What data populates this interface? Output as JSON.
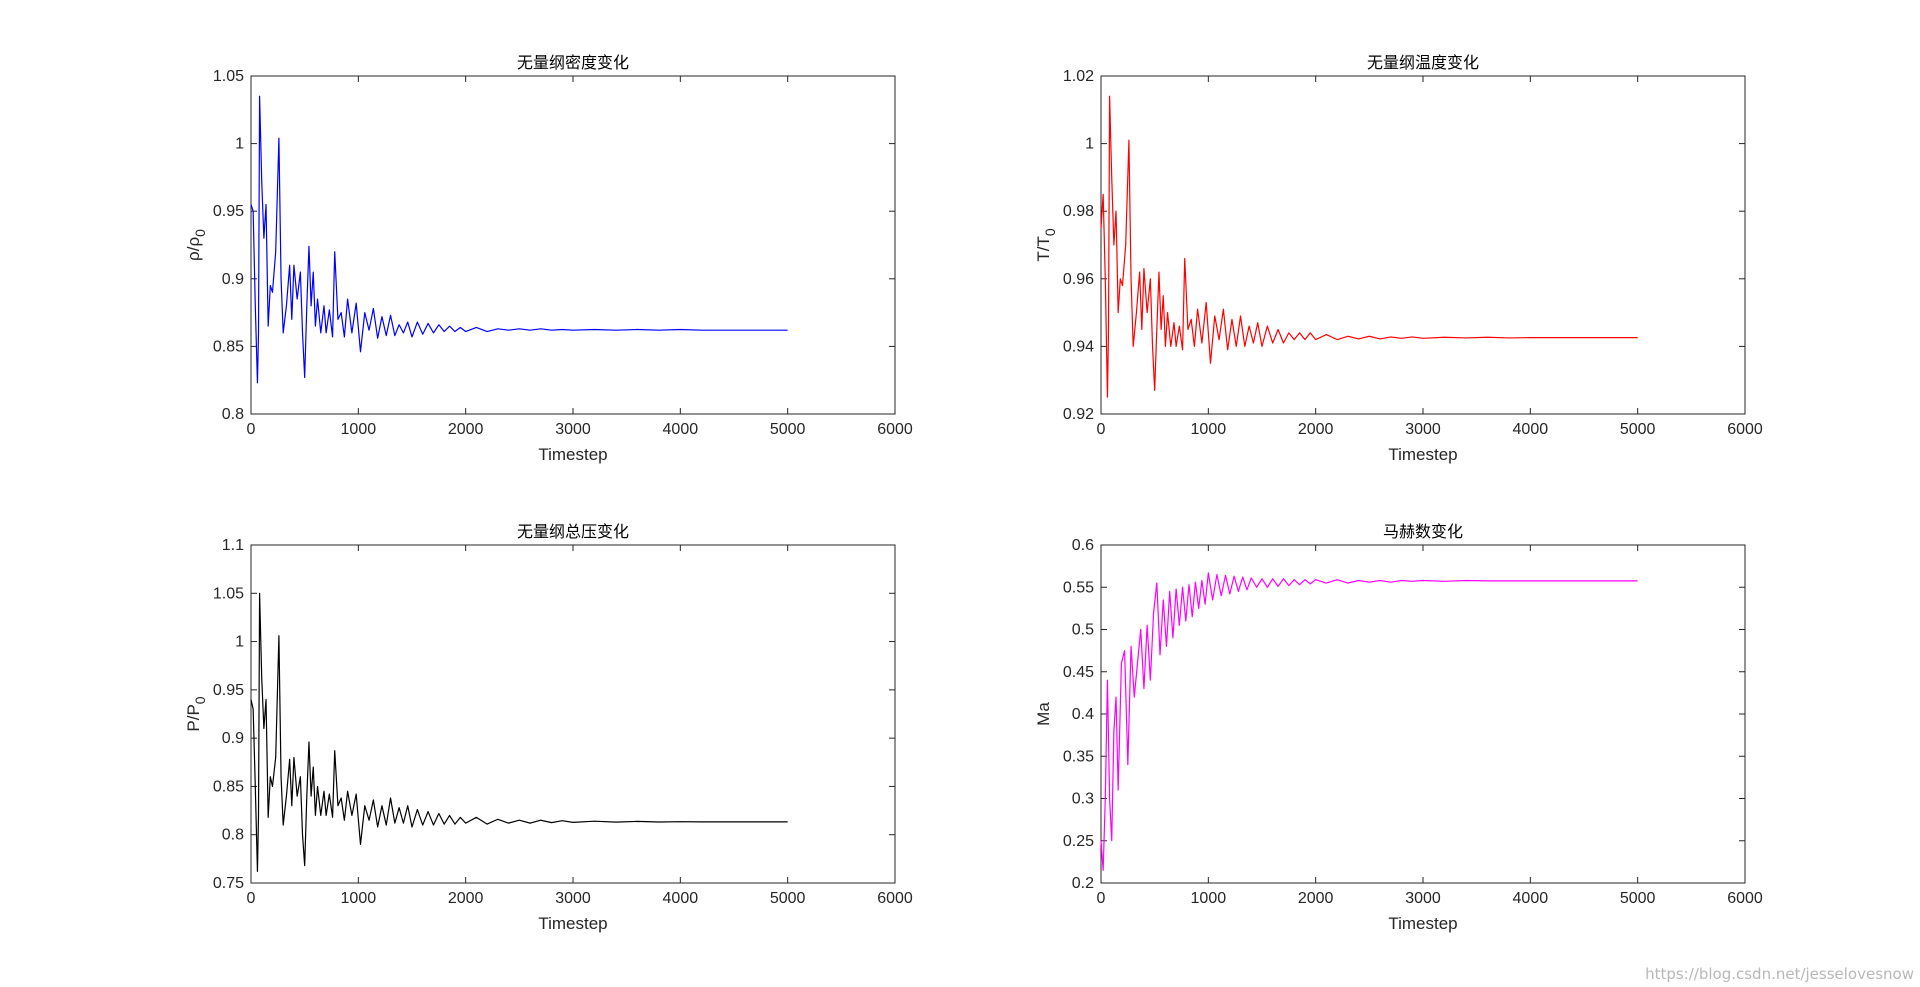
{
  "watermark": "https://blog.csdn.net/jesselovesnow",
  "chart_data": [
    {
      "type": "line",
      "title": "无量纲密度变化",
      "xlabel": "Timestep",
      "ylabel": {
        "base": "ρ/ρ",
        "sub": "0"
      },
      "xlim": [
        0,
        6000
      ],
      "ylim": [
        0.8,
        1.05
      ],
      "xticks": [
        0,
        1000,
        2000,
        3000,
        4000,
        5000,
        6000
      ],
      "yticks": [
        0.8,
        0.85,
        0.9,
        0.95,
        1,
        1.05
      ],
      "xtick_labels": [
        "0",
        "1000",
        "2000",
        "3000",
        "4000",
        "5000",
        "6000"
      ],
      "ytick_labels": [
        "0.8",
        "0.85",
        "0.9",
        "0.95",
        "1",
        "1.05"
      ],
      "grid": false,
      "color": "#0000ff",
      "series": [
        {
          "x": [
            0,
            20,
            40,
            60,
            70,
            80,
            100,
            120,
            140,
            160,
            180,
            200,
            230,
            260,
            280,
            300,
            330,
            360,
            380,
            400,
            430,
            460,
            480,
            500,
            520,
            540,
            560,
            580,
            600,
            620,
            650,
            680,
            700,
            730,
            760,
            780,
            810,
            840,
            870,
            900,
            940,
            980,
            1020,
            1060,
            1100,
            1140,
            1180,
            1220,
            1260,
            1300,
            1340,
            1380,
            1420,
            1460,
            1500,
            1550,
            1600,
            1650,
            1700,
            1750,
            1800,
            1850,
            1900,
            1950,
            2000,
            2100,
            2200,
            2300,
            2400,
            2500,
            2600,
            2700,
            2800,
            2900,
            3000,
            3200,
            3400,
            3600,
            3800,
            4000,
            4200,
            4400,
            4600,
            4800,
            5000
          ],
          "y": [
            0.955,
            0.95,
            0.88,
            0.823,
            0.86,
            1.035,
            0.972,
            0.93,
            0.955,
            0.865,
            0.895,
            0.89,
            0.92,
            1.004,
            0.9,
            0.86,
            0.88,
            0.91,
            0.87,
            0.91,
            0.885,
            0.905,
            0.86,
            0.827,
            0.88,
            0.924,
            0.88,
            0.905,
            0.865,
            0.885,
            0.86,
            0.88,
            0.86,
            0.877,
            0.857,
            0.92,
            0.87,
            0.875,
            0.857,
            0.885,
            0.86,
            0.882,
            0.846,
            0.875,
            0.862,
            0.878,
            0.856,
            0.872,
            0.858,
            0.873,
            0.858,
            0.866,
            0.86,
            0.868,
            0.857,
            0.868,
            0.859,
            0.867,
            0.86,
            0.866,
            0.861,
            0.865,
            0.861,
            0.864,
            0.861,
            0.864,
            0.861,
            0.863,
            0.862,
            0.863,
            0.862,
            0.863,
            0.862,
            0.8625,
            0.862,
            0.8625,
            0.862,
            0.8625,
            0.862,
            0.8625,
            0.862,
            0.862,
            0.862,
            0.862,
            0.862
          ]
        }
      ]
    },
    {
      "type": "line",
      "title": "无量纲温度变化",
      "xlabel": "Timestep",
      "ylabel": {
        "base": "T/T",
        "sub": "0"
      },
      "xlim": [
        0,
        6000
      ],
      "ylim": [
        0.92,
        1.02
      ],
      "xticks": [
        0,
        1000,
        2000,
        3000,
        4000,
        5000,
        6000
      ],
      "yticks": [
        0.92,
        0.94,
        0.96,
        0.98,
        1,
        1.02
      ],
      "xtick_labels": [
        "0",
        "1000",
        "2000",
        "3000",
        "4000",
        "5000",
        "6000"
      ],
      "ytick_labels": [
        "0.92",
        "0.94",
        "0.96",
        "0.98",
        "1",
        "1.02"
      ],
      "grid": false,
      "color": "#ff0000",
      "series": [
        {
          "x": [
            0,
            20,
            40,
            60,
            70,
            80,
            100,
            120,
            140,
            160,
            180,
            200,
            230,
            260,
            280,
            300,
            330,
            360,
            380,
            400,
            430,
            460,
            480,
            500,
            520,
            540,
            560,
            580,
            600,
            620,
            650,
            680,
            700,
            730,
            760,
            780,
            810,
            840,
            870,
            900,
            940,
            980,
            1020,
            1060,
            1100,
            1140,
            1180,
            1220,
            1260,
            1300,
            1340,
            1380,
            1420,
            1460,
            1500,
            1550,
            1600,
            1650,
            1700,
            1750,
            1800,
            1850,
            1900,
            1950,
            2000,
            2100,
            2200,
            2300,
            2400,
            2500,
            2600,
            2700,
            2800,
            2900,
            3000,
            3200,
            3400,
            3600,
            3800,
            4000,
            4200,
            4400,
            4600,
            4800,
            5000
          ],
          "y": [
            0.975,
            0.985,
            0.96,
            0.925,
            0.945,
            1.014,
            0.99,
            0.97,
            0.98,
            0.95,
            0.96,
            0.958,
            0.97,
            1.001,
            0.96,
            0.94,
            0.95,
            0.962,
            0.945,
            0.963,
            0.95,
            0.96,
            0.94,
            0.927,
            0.945,
            0.962,
            0.945,
            0.955,
            0.94,
            0.95,
            0.94,
            0.947,
            0.94,
            0.946,
            0.939,
            0.966,
            0.945,
            0.948,
            0.94,
            0.951,
            0.941,
            0.953,
            0.935,
            0.949,
            0.942,
            0.951,
            0.939,
            0.948,
            0.94,
            0.949,
            0.94,
            0.946,
            0.941,
            0.947,
            0.94,
            0.946,
            0.941,
            0.945,
            0.941,
            0.944,
            0.942,
            0.944,
            0.942,
            0.944,
            0.942,
            0.9435,
            0.942,
            0.943,
            0.9422,
            0.943,
            0.9422,
            0.9428,
            0.9424,
            0.9428,
            0.9424,
            0.9427,
            0.9425,
            0.9427,
            0.9425,
            0.9426,
            0.9426,
            0.9426,
            0.9426,
            0.9426,
            0.9426
          ]
        }
      ]
    },
    {
      "type": "line",
      "title": "无量纲总压变化",
      "xlabel": "Timestep",
      "ylabel": {
        "base": "P/P",
        "sub": "0"
      },
      "xlim": [
        0,
        6000
      ],
      "ylim": [
        0.75,
        1.1
      ],
      "xticks": [
        0,
        1000,
        2000,
        3000,
        4000,
        5000,
        6000
      ],
      "yticks": [
        0.75,
        0.8,
        0.85,
        0.9,
        0.95,
        1,
        1.05,
        1.1
      ],
      "xtick_labels": [
        "0",
        "1000",
        "2000",
        "3000",
        "4000",
        "5000",
        "6000"
      ],
      "ytick_labels": [
        "0.75",
        "0.8",
        "0.85",
        "0.9",
        "0.95",
        "1",
        "1.05",
        "1.1"
      ],
      "grid": false,
      "color": "#000000",
      "series": [
        {
          "x": [
            0,
            20,
            40,
            60,
            70,
            80,
            100,
            120,
            140,
            160,
            180,
            200,
            230,
            260,
            280,
            300,
            330,
            360,
            380,
            400,
            430,
            460,
            480,
            500,
            520,
            540,
            560,
            580,
            600,
            620,
            650,
            680,
            700,
            730,
            760,
            780,
            810,
            840,
            870,
            900,
            940,
            980,
            1020,
            1060,
            1100,
            1140,
            1180,
            1220,
            1260,
            1300,
            1340,
            1380,
            1420,
            1460,
            1500,
            1550,
            1600,
            1650,
            1700,
            1750,
            1800,
            1850,
            1900,
            1950,
            2000,
            2100,
            2200,
            2300,
            2400,
            2500,
            2600,
            2700,
            2800,
            2900,
            3000,
            3200,
            3400,
            3600,
            3800,
            4000,
            4200,
            4400,
            4600,
            4800,
            5000
          ],
          "y": [
            0.94,
            0.93,
            0.85,
            0.762,
            0.82,
            1.05,
            0.962,
            0.91,
            0.94,
            0.818,
            0.86,
            0.85,
            0.88,
            1.006,
            0.86,
            0.81,
            0.84,
            0.878,
            0.83,
            0.88,
            0.84,
            0.86,
            0.8,
            0.768,
            0.84,
            0.896,
            0.84,
            0.87,
            0.82,
            0.85,
            0.82,
            0.845,
            0.82,
            0.842,
            0.818,
            0.887,
            0.83,
            0.838,
            0.815,
            0.845,
            0.82,
            0.842,
            0.79,
            0.83,
            0.815,
            0.836,
            0.808,
            0.83,
            0.81,
            0.838,
            0.812,
            0.828,
            0.812,
            0.83,
            0.808,
            0.826,
            0.81,
            0.824,
            0.81,
            0.822,
            0.811,
            0.82,
            0.811,
            0.818,
            0.812,
            0.818,
            0.811,
            0.816,
            0.812,
            0.815,
            0.812,
            0.815,
            0.8125,
            0.8145,
            0.8128,
            0.814,
            0.813,
            0.8138,
            0.8132,
            0.8135,
            0.8133,
            0.8133,
            0.8133,
            0.8133,
            0.8133
          ]
        }
      ]
    },
    {
      "type": "line",
      "title": "马赫数变化",
      "xlabel": "Timestep",
      "ylabel": {
        "base": "Ma",
        "sub": ""
      },
      "xlim": [
        0,
        6000
      ],
      "ylim": [
        0.2,
        0.6
      ],
      "xticks": [
        0,
        1000,
        2000,
        3000,
        4000,
        5000,
        6000
      ],
      "yticks": [
        0.2,
        0.25,
        0.3,
        0.35,
        0.4,
        0.45,
        0.5,
        0.55,
        0.6
      ],
      "xtick_labels": [
        "0",
        "1000",
        "2000",
        "3000",
        "4000",
        "5000",
        "6000"
      ],
      "ytick_labels": [
        "0.2",
        "0.25",
        "0.3",
        "0.35",
        "0.4",
        "0.45",
        "0.5",
        "0.55",
        "0.6"
      ],
      "grid": false,
      "color": "#ff00ff",
      "series": [
        {
          "x": [
            0,
            20,
            40,
            60,
            80,
            100,
            120,
            140,
            160,
            190,
            220,
            250,
            280,
            310,
            340,
            370,
            400,
            430,
            460,
            490,
            520,
            550,
            580,
            610,
            640,
            670,
            700,
            730,
            760,
            790,
            820,
            850,
            880,
            910,
            940,
            970,
            1000,
            1040,
            1080,
            1120,
            1160,
            1200,
            1240,
            1280,
            1320,
            1360,
            1400,
            1450,
            1500,
            1550,
            1600,
            1650,
            1700,
            1750,
            1800,
            1850,
            1900,
            1950,
            2000,
            2100,
            2200,
            2300,
            2400,
            2500,
            2600,
            2700,
            2800,
            2900,
            3000,
            3200,
            3400,
            3600,
            3800,
            4000,
            4200,
            4400,
            4600,
            4800,
            5000
          ],
          "y": [
            0.25,
            0.215,
            0.3,
            0.44,
            0.3,
            0.25,
            0.38,
            0.42,
            0.31,
            0.46,
            0.475,
            0.34,
            0.48,
            0.42,
            0.46,
            0.5,
            0.43,
            0.505,
            0.44,
            0.52,
            0.555,
            0.47,
            0.535,
            0.48,
            0.545,
            0.49,
            0.548,
            0.505,
            0.55,
            0.51,
            0.553,
            0.515,
            0.556,
            0.525,
            0.558,
            0.53,
            0.567,
            0.535,
            0.565,
            0.54,
            0.564,
            0.542,
            0.563,
            0.545,
            0.562,
            0.547,
            0.561,
            0.55,
            0.56,
            0.55,
            0.56,
            0.551,
            0.56,
            0.552,
            0.559,
            0.553,
            0.559,
            0.554,
            0.559,
            0.555,
            0.559,
            0.555,
            0.558,
            0.556,
            0.558,
            0.556,
            0.558,
            0.557,
            0.558,
            0.557,
            0.558,
            0.5575,
            0.5575,
            0.5575,
            0.5575,
            0.5575,
            0.5575,
            0.5575,
            0.5575
          ]
        }
      ]
    }
  ]
}
